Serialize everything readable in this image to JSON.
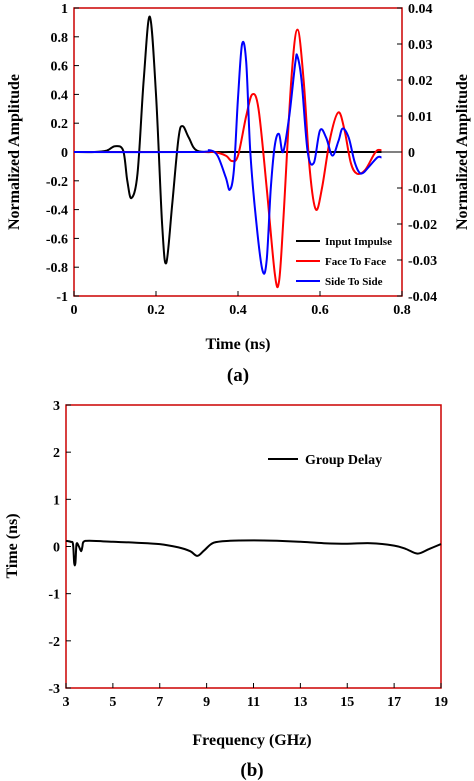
{
  "chart_data": [
    {
      "type": "line",
      "panel_label": "(a)",
      "xlabel": "Time (ns)",
      "ylabel": "Normalized Amplitude",
      "y2label": "Normalized Amplitude",
      "xlim": [
        0,
        0.8
      ],
      "ylim": [
        -1,
        1
      ],
      "y2lim": [
        -0.04,
        0.04
      ],
      "xticks": [
        "0",
        "0.2",
        "0.4",
        "0.6",
        "0.8"
      ],
      "yticks": [
        "-1",
        "-0.8",
        "-0.6",
        "-0.4",
        "-0.2",
        "0",
        "0.2",
        "0.4",
        "0.6",
        "0.8",
        "1"
      ],
      "y2ticks": [
        "-0.04",
        "-0.03",
        "-0.02",
        "-0.01",
        "0",
        "0.01",
        "0.02",
        "0.03",
        "0.04"
      ],
      "grid": false,
      "legend_position": "bottom-right",
      "series": [
        {
          "name": "Input Impulse",
          "axis": "left",
          "color": "#000000",
          "points": [
            [
              0,
              0
            ],
            [
              0.05,
              0
            ],
            [
              0.08,
              0.01
            ],
            [
              0.1,
              0.04
            ],
            [
              0.12,
              0.01
            ],
            [
              0.13,
              -0.2
            ],
            [
              0.14,
              -0.32
            ],
            [
              0.155,
              -0.15
            ],
            [
              0.17,
              0.5
            ],
            [
              0.185,
              0.94
            ],
            [
              0.2,
              0.4
            ],
            [
              0.215,
              -0.5
            ],
            [
              0.225,
              -0.77
            ],
            [
              0.24,
              -0.35
            ],
            [
              0.255,
              0.1
            ],
            [
              0.265,
              0.18
            ],
            [
              0.28,
              0.1
            ],
            [
              0.3,
              0.01
            ],
            [
              0.35,
              0
            ],
            [
              0.4,
              0
            ],
            [
              0.5,
              0
            ],
            [
              0.6,
              0
            ],
            [
              0.7,
              0
            ],
            [
              0.75,
              0
            ]
          ]
        },
        {
          "name": "Face To Face",
          "axis": "right",
          "color": "#ff0000",
          "points": [
            [
              0,
              0
            ],
            [
              0.3,
              0
            ],
            [
              0.34,
              0
            ],
            [
              0.37,
              -0.001
            ],
            [
              0.385,
              -0.0025
            ],
            [
              0.4,
              -0.001
            ],
            [
              0.42,
              0.01
            ],
            [
              0.435,
              0.016
            ],
            [
              0.45,
              0.012
            ],
            [
              0.47,
              -0.01
            ],
            [
              0.49,
              -0.034
            ],
            [
              0.5,
              -0.036
            ],
            [
              0.51,
              -0.02
            ],
            [
              0.53,
              0.02
            ],
            [
              0.545,
              0.034
            ],
            [
              0.56,
              0.02
            ],
            [
              0.575,
              -0.005
            ],
            [
              0.59,
              -0.016
            ],
            [
              0.605,
              -0.01
            ],
            [
              0.625,
              0.004
            ],
            [
              0.645,
              0.011
            ],
            [
              0.66,
              0.006
            ],
            [
              0.675,
              -0.003
            ],
            [
              0.69,
              -0.006
            ],
            [
              0.71,
              -0.005
            ],
            [
              0.73,
              -0.001
            ],
            [
              0.74,
              0.0005
            ],
            [
              0.75,
              0.0005
            ]
          ]
        },
        {
          "name": "Side To Side",
          "axis": "right",
          "color": "#0000ff",
          "points": [
            [
              0,
              0
            ],
            [
              0.3,
              0
            ],
            [
              0.33,
              0.0005
            ],
            [
              0.35,
              -0.001
            ],
            [
              0.37,
              -0.007
            ],
            [
              0.38,
              -0.0105
            ],
            [
              0.39,
              -0.005
            ],
            [
              0.4,
              0.015
            ],
            [
              0.41,
              0.03
            ],
            [
              0.42,
              0.025
            ],
            [
              0.43,
              0
            ],
            [
              0.445,
              -0.02
            ],
            [
              0.46,
              -0.033
            ],
            [
              0.47,
              -0.03
            ],
            [
              0.48,
              -0.01
            ],
            [
              0.49,
              0.002
            ],
            [
              0.5,
              0.005
            ],
            [
              0.51,
              0
            ],
            [
              0.525,
              0.01
            ],
            [
              0.54,
              0.025
            ],
            [
              0.545,
              0.0265
            ],
            [
              0.555,
              0.02
            ],
            [
              0.57,
              0
            ],
            [
              0.585,
              -0.003
            ],
            [
              0.6,
              0.006
            ],
            [
              0.615,
              0.004
            ],
            [
              0.63,
              -0.001
            ],
            [
              0.645,
              0.003
            ],
            [
              0.655,
              0.0065
            ],
            [
              0.67,
              0.004
            ],
            [
              0.685,
              -0.003
            ],
            [
              0.7,
              -0.006
            ],
            [
              0.72,
              -0.004
            ],
            [
              0.74,
              -0.0015
            ],
            [
              0.75,
              -0.0015
            ]
          ]
        }
      ]
    },
    {
      "type": "line",
      "panel_label": "(b)",
      "xlabel": "Frequency (GHz)",
      "ylabel": "Time (ns)",
      "xlim": [
        3,
        19
      ],
      "ylim": [
        -3,
        3
      ],
      "xticks": [
        "3",
        "5",
        "7",
        "9",
        "11",
        "13",
        "15",
        "17",
        "19"
      ],
      "yticks": [
        "-3",
        "-2",
        "-1",
        "0",
        "1",
        "2",
        "3"
      ],
      "grid": false,
      "legend_position": "top-right",
      "series": [
        {
          "name": "Group Delay",
          "color": "#000000",
          "points": [
            [
              3,
              0.12
            ],
            [
              3.2,
              0.1
            ],
            [
              3.3,
              0.05
            ],
            [
              3.35,
              -0.35
            ],
            [
              3.4,
              -0.35
            ],
            [
              3.45,
              0.05
            ],
            [
              3.55,
              0
            ],
            [
              3.65,
              -0.1
            ],
            [
              3.7,
              0
            ],
            [
              3.75,
              0.1
            ],
            [
              4,
              0.12
            ],
            [
              5,
              0.1
            ],
            [
              6,
              0.08
            ],
            [
              7,
              0.05
            ],
            [
              7.8,
              -0.02
            ],
            [
              8.3,
              -0.1
            ],
            [
              8.6,
              -0.2
            ],
            [
              8.9,
              -0.08
            ],
            [
              9.3,
              0.08
            ],
            [
              10,
              0.12
            ],
            [
              11,
              0.13
            ],
            [
              12,
              0.12
            ],
            [
              13,
              0.1
            ],
            [
              14,
              0.07
            ],
            [
              15,
              0.06
            ],
            [
              16,
              0.07
            ],
            [
              17,
              0.02
            ],
            [
              17.5,
              -0.05
            ],
            [
              18,
              -0.15
            ],
            [
              18.5,
              -0.05
            ],
            [
              19,
              0.05
            ]
          ]
        }
      ]
    }
  ]
}
